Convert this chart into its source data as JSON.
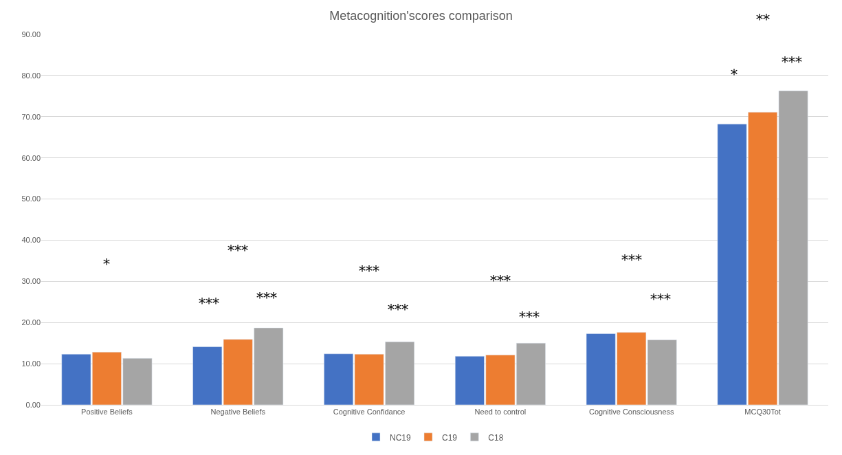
{
  "chart_data": {
    "type": "bar",
    "title": "Metacognition'scores comparison",
    "categories": [
      "Positive Beliefs",
      "Negative Beliefs",
      "Cognitive Confidance",
      "Need to control",
      "Cognitive Consciousness",
      "MCQ30Tot"
    ],
    "series": [
      {
        "name": "NC19",
        "color": "#4472c4",
        "values": [
          12.3,
          14.1,
          12.4,
          11.8,
          17.3,
          68.2
        ]
      },
      {
        "name": "C19",
        "color": "#ed7d31",
        "values": [
          12.8,
          15.9,
          12.3,
          12.1,
          17.6,
          71.1
        ]
      },
      {
        "name": "C18",
        "color": "#a5a5a5",
        "values": [
          11.3,
          18.7,
          15.3,
          15.0,
          15.8,
          76.3
        ]
      }
    ],
    "ylim": [
      0,
      90
    ],
    "yticks": [
      {
        "value": 0,
        "label": "0.00"
      },
      {
        "value": 10,
        "label": "10.00"
      },
      {
        "value": 20,
        "label": "20.00"
      },
      {
        "value": 30,
        "label": "30.00"
      },
      {
        "value": 40,
        "label": "40.00"
      },
      {
        "value": 50,
        "label": "50.00"
      },
      {
        "value": 60,
        "label": "60.00"
      },
      {
        "value": 70,
        "label": "70.00"
      },
      {
        "value": 80,
        "label": "80.00"
      },
      {
        "value": 90,
        "label": "90.00"
      }
    ],
    "grid": "y",
    "legend": "bottom",
    "annotations": [
      "*",
      "***",
      "***",
      "***",
      "***",
      "***",
      "***",
      "***",
      "***",
      "***",
      "**",
      "*",
      "***"
    ]
  }
}
